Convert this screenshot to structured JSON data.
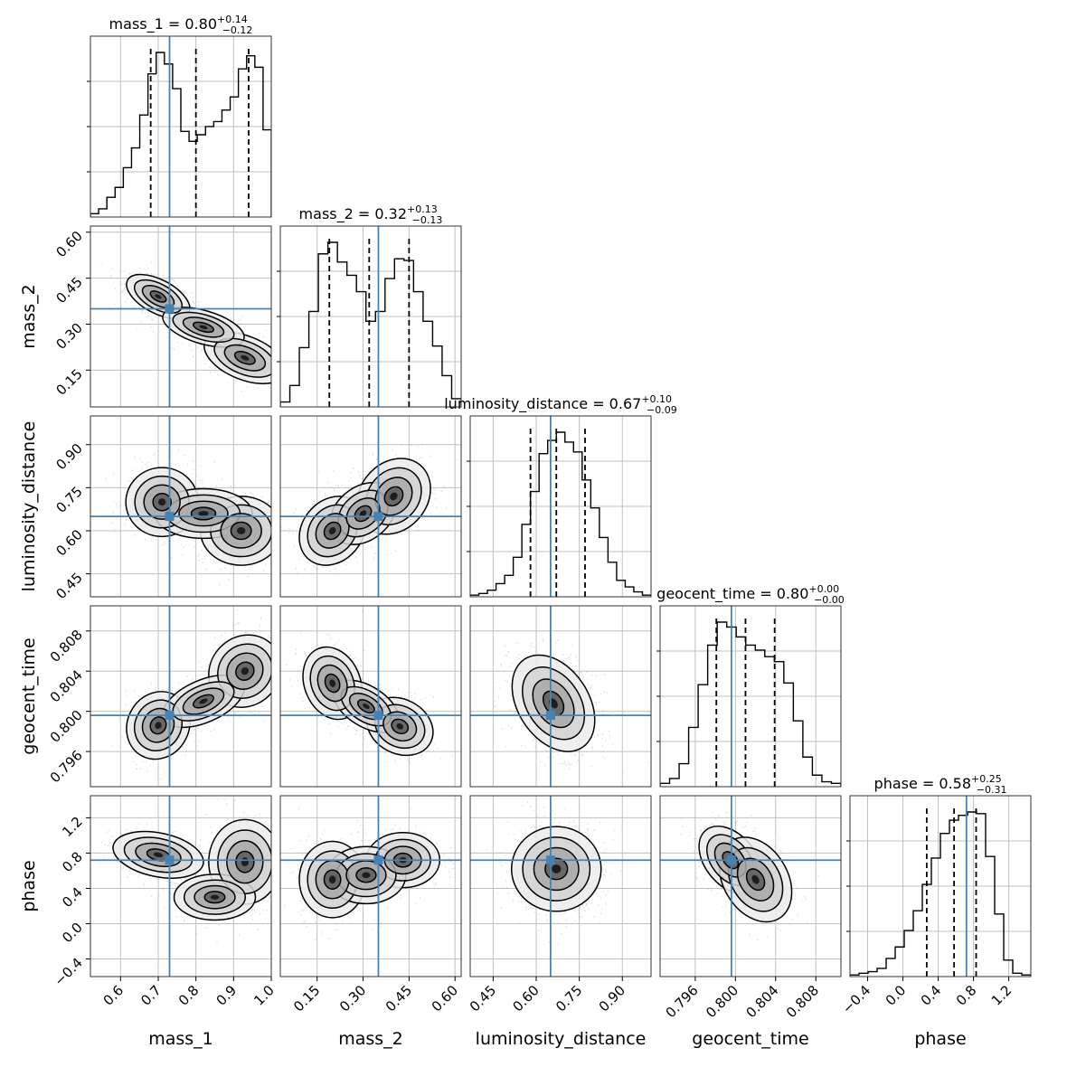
{
  "chart_data": {
    "type": "corner",
    "parameters": [
      {
        "name": "mass_1",
        "range": [
          0.52,
          1.0
        ],
        "ticks": [
          "0.6",
          "0.7",
          "0.8",
          "0.9",
          "1.0"
        ],
        "tick_values": [
          0.6,
          0.7,
          0.8,
          0.9,
          1.0
        ],
        "truth": 0.73,
        "title": {
          "prefix": "mass_1 = 0.80",
          "plus": "+0.14",
          "minus": "−0.12"
        },
        "quantiles": [
          0.68,
          0.8,
          0.94
        ],
        "hist": [
          0.02,
          0.05,
          0.12,
          0.18,
          0.3,
          0.42,
          0.62,
          0.87,
          1.0,
          0.93,
          0.78,
          0.52,
          0.46,
          0.5,
          0.55,
          0.58,
          0.65,
          0.73,
          0.9,
          0.98,
          0.91,
          0.53
        ]
      },
      {
        "name": "mass_2",
        "range": [
          0.03,
          0.62
        ],
        "ticks": [
          "0.15",
          "0.30",
          "0.45",
          "0.60"
        ],
        "tick_values": [
          0.15,
          0.3,
          0.45,
          0.6
        ],
        "truth": 0.35,
        "title": {
          "prefix": "mass_2 = 0.32",
          "plus": "+0.13",
          "minus": "−0.13"
        },
        "quantiles": [
          0.19,
          0.32,
          0.45
        ],
        "hist": [
          0.03,
          0.13,
          0.36,
          0.58,
          0.93,
          1.0,
          0.88,
          0.8,
          0.7,
          0.52,
          0.58,
          0.78,
          0.9,
          0.89,
          0.7,
          0.52,
          0.37,
          0.19,
          0.05
        ]
      },
      {
        "name": "luminosity_distance",
        "range": [
          0.37,
          1.0
        ],
        "ticks": [
          "0.45",
          "0.60",
          "0.75",
          "0.90"
        ],
        "tick_values": [
          0.45,
          0.6,
          0.75,
          0.9
        ],
        "truth": 0.65,
        "title": {
          "prefix": "luminosity_distance = 0.67",
          "plus": "+0.10",
          "minus": "−0.09"
        },
        "quantiles": [
          0.58,
          0.67,
          0.77
        ],
        "hist": [
          0.01,
          0.02,
          0.04,
          0.08,
          0.13,
          0.24,
          0.44,
          0.64,
          0.87,
          0.95,
          1.0,
          0.94,
          0.88,
          0.71,
          0.54,
          0.36,
          0.21,
          0.1,
          0.06,
          0.03,
          0.01
        ]
      },
      {
        "name": "geocent_time",
        "range": [
          0.7925,
          0.8105
        ],
        "ticks": [
          "0.796",
          "0.800",
          "0.804",
          "0.808"
        ],
        "tick_values": [
          0.796,
          0.8,
          0.804,
          0.808
        ],
        "truth": 0.7996,
        "title": {
          "prefix": "geocent_time = 0.80",
          "plus": "+0.00",
          "minus": "−0.00"
        },
        "quantiles": [
          0.7981,
          0.801,
          0.8039
        ],
        "hist": [
          0.02,
          0.05,
          0.14,
          0.36,
          0.62,
          0.86,
          1.0,
          0.97,
          0.91,
          0.86,
          0.83,
          0.79,
          0.76,
          0.63,
          0.4,
          0.18,
          0.07,
          0.03,
          0.02
        ]
      },
      {
        "name": "phase",
        "range": [
          -0.6,
          1.45
        ],
        "ticks": [
          "−0.4",
          "0.0",
          "0.4",
          "0.8",
          "1.2"
        ],
        "tick_values": [
          -0.4,
          0.0,
          0.4,
          0.8,
          1.2
        ],
        "truth": 0.72,
        "title": {
          "prefix": "phase = 0.58",
          "plus": "+0.25",
          "minus": "−0.31"
        },
        "quantiles": [
          0.27,
          0.58,
          0.83
        ],
        "hist": [
          0.01,
          0.02,
          0.03,
          0.05,
          0.11,
          0.18,
          0.28,
          0.4,
          0.56,
          0.72,
          0.87,
          0.95,
          0.98,
          1.0,
          0.99,
          0.73,
          0.38,
          0.1,
          0.02,
          0.01
        ]
      }
    ],
    "pairs": [
      {
        "x": 0,
        "y": 1,
        "modes": [
          [
            0.7,
            0.39,
            0.035,
            0.03,
            -0.55,
            0.55
          ],
          [
            0.93,
            0.19,
            0.045,
            0.035,
            -0.45,
            0.45
          ],
          [
            0.82,
            0.29,
            0.05,
            0.03,
            -0.5,
            0.3
          ]
        ]
      },
      {
        "x": 0,
        "y": 2,
        "modes": [
          [
            0.71,
            0.7,
            0.04,
            0.05,
            0.0,
            0.5
          ],
          [
            0.92,
            0.6,
            0.045,
            0.05,
            0.0,
            0.5
          ],
          [
            0.82,
            0.66,
            0.06,
            0.04,
            0.0,
            0.3
          ]
        ]
      },
      {
        "x": 0,
        "y": 3,
        "modes": [
          [
            0.7,
            0.7986,
            0.035,
            0.0014,
            0.1,
            0.5
          ],
          [
            0.93,
            0.804,
            0.04,
            0.0015,
            0.1,
            0.5
          ],
          [
            0.82,
            0.801,
            0.05,
            0.0012,
            0.5,
            0.3
          ]
        ]
      },
      {
        "x": 0,
        "y": 4,
        "modes": [
          [
            0.7,
            0.78,
            0.05,
            0.11,
            -0.3,
            0.5
          ],
          [
            0.93,
            0.7,
            0.04,
            0.2,
            0.0,
            0.5
          ],
          [
            0.85,
            0.3,
            0.05,
            0.12,
            0.0,
            0.25
          ]
        ]
      },
      {
        "x": 1,
        "y": 2,
        "modes": [
          [
            0.2,
            0.6,
            0.045,
            0.05,
            0.2,
            0.5
          ],
          [
            0.4,
            0.72,
            0.05,
            0.055,
            0.2,
            0.5
          ],
          [
            0.3,
            0.66,
            0.05,
            0.05,
            0.3,
            0.3
          ]
        ]
      },
      {
        "x": 1,
        "y": 3,
        "modes": [
          [
            0.2,
            0.8028,
            0.04,
            0.0015,
            -0.2,
            0.5
          ],
          [
            0.42,
            0.7985,
            0.045,
            0.0012,
            -0.2,
            0.5
          ],
          [
            0.31,
            0.8005,
            0.05,
            0.0012,
            -0.5,
            0.3
          ]
        ]
      },
      {
        "x": 1,
        "y": 4,
        "modes": [
          [
            0.2,
            0.5,
            0.045,
            0.18,
            0.0,
            0.5
          ],
          [
            0.43,
            0.72,
            0.05,
            0.13,
            0.0,
            0.5
          ],
          [
            0.31,
            0.55,
            0.06,
            0.15,
            0.0,
            0.3
          ]
        ]
      },
      {
        "x": 2,
        "y": 3,
        "modes": [
          [
            0.66,
            0.8008,
            0.06,
            0.002,
            -0.35,
            1.0
          ]
        ]
      },
      {
        "x": 2,
        "y": 4,
        "modes": [
          [
            0.67,
            0.62,
            0.065,
            0.2,
            0.0,
            1.0
          ]
        ]
      },
      {
        "x": 3,
        "y": 4,
        "modes": [
          [
            0.7995,
            0.72,
            0.0013,
            0.16,
            -0.4,
            0.6
          ],
          [
            0.802,
            0.5,
            0.0015,
            0.2,
            -0.3,
            0.4
          ]
        ]
      }
    ],
    "colors": {
      "truth": "#4682b4",
      "hist": "#000000",
      "grid": "#c0c0c0",
      "points": "#999999"
    }
  }
}
